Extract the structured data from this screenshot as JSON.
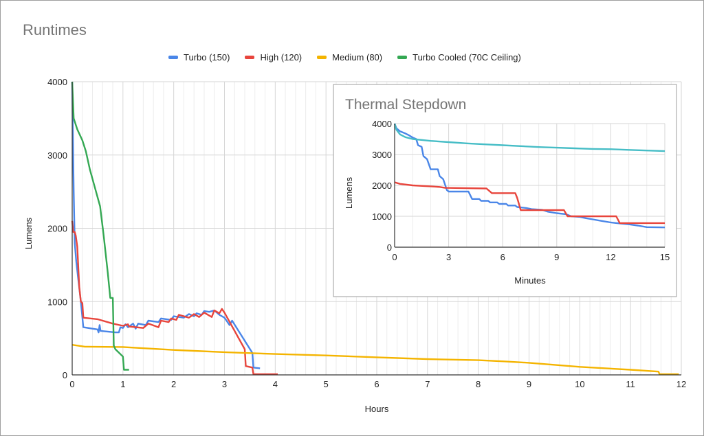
{
  "chart_data": [
    {
      "type": "line",
      "title": "Runtimes",
      "xlabel": "Hours",
      "ylabel": "Lumens",
      "xlim": [
        0,
        12
      ],
      "ylim": [
        0,
        4000
      ],
      "xticks": [
        "0",
        "1",
        "2",
        "3",
        "4",
        "5",
        "6",
        "7",
        "8",
        "9",
        "10",
        "11",
        "12"
      ],
      "yticks": [
        "0",
        "1000",
        "2000",
        "3000",
        "4000"
      ],
      "grid": true,
      "legend_position": "top",
      "series": [
        {
          "name": "Turbo (150)",
          "color": "#4a86e8",
          "points": [
            [
              0,
              4000
            ],
            [
              0.01,
              3500
            ],
            [
              0.03,
              2500
            ],
            [
              0.05,
              1800
            ],
            [
              0.08,
              1550
            ],
            [
              0.12,
              1300
            ],
            [
              0.17,
              1000
            ],
            [
              0.22,
              650
            ],
            [
              0.5,
              620
            ],
            [
              0.52,
              580
            ],
            [
              0.54,
              680
            ],
            [
              0.56,
              600
            ],
            [
              0.85,
              580
            ],
            [
              0.92,
              580
            ],
            [
              0.95,
              650
            ],
            [
              1.0,
              640
            ],
            [
              1.05,
              690
            ],
            [
              1.1,
              650
            ],
            [
              1.2,
              700
            ],
            [
              1.25,
              630
            ],
            [
              1.3,
              700
            ],
            [
              1.45,
              680
            ],
            [
              1.5,
              740
            ],
            [
              1.7,
              720
            ],
            [
              1.75,
              770
            ],
            [
              1.95,
              750
            ],
            [
              2.0,
              800
            ],
            [
              2.2,
              780
            ],
            [
              2.3,
              830
            ],
            [
              2.4,
              800
            ],
            [
              2.45,
              840
            ],
            [
              2.55,
              820
            ],
            [
              2.6,
              870
            ],
            [
              2.7,
              860
            ],
            [
              2.8,
              880
            ],
            [
              2.9,
              820
            ],
            [
              3.0,
              780
            ],
            [
              3.1,
              680
            ],
            [
              3.15,
              740
            ],
            [
              3.55,
              300
            ],
            [
              3.57,
              100
            ],
            [
              3.7,
              90
            ]
          ]
        },
        {
          "name": "High (120)",
          "color": "#e8453c",
          "points": [
            [
              0,
              2100
            ],
            [
              0.02,
              1950
            ],
            [
              0.05,
              1950
            ],
            [
              0.07,
              1900
            ],
            [
              0.1,
              1750
            ],
            [
              0.14,
              1200
            ],
            [
              0.17,
              1000
            ],
            [
              0.2,
              980
            ],
            [
              0.22,
              780
            ],
            [
              0.5,
              760
            ],
            [
              0.8,
              700
            ],
            [
              1.0,
              670
            ],
            [
              1.1,
              690
            ],
            [
              1.12,
              660
            ],
            [
              1.4,
              640
            ],
            [
              1.5,
              700
            ],
            [
              1.7,
              650
            ],
            [
              1.75,
              740
            ],
            [
              1.9,
              720
            ],
            [
              1.95,
              770
            ],
            [
              2.05,
              750
            ],
            [
              2.1,
              820
            ],
            [
              2.3,
              780
            ],
            [
              2.4,
              830
            ],
            [
              2.5,
              790
            ],
            [
              2.6,
              850
            ],
            [
              2.75,
              790
            ],
            [
              2.8,
              880
            ],
            [
              2.9,
              840
            ],
            [
              2.95,
              900
            ],
            [
              3.0,
              850
            ],
            [
              3.4,
              350
            ],
            [
              3.42,
              120
            ],
            [
              3.55,
              100
            ],
            [
              3.57,
              10
            ],
            [
              4.05,
              10
            ]
          ]
        },
        {
          "name": "Medium (80)",
          "color": "#f4b400",
          "points": [
            [
              0,
              410
            ],
            [
              0.25,
              385
            ],
            [
              1.0,
              380
            ],
            [
              2.0,
              340
            ],
            [
              3.0,
              310
            ],
            [
              4.0,
              285
            ],
            [
              5.0,
              265
            ],
            [
              6.0,
              240
            ],
            [
              7.0,
              215
            ],
            [
              8.0,
              200
            ],
            [
              8.5,
              185
            ],
            [
              9.0,
              165
            ],
            [
              10.0,
              110
            ],
            [
              11.0,
              70
            ],
            [
              11.55,
              45
            ],
            [
              11.57,
              10
            ],
            [
              11.95,
              10
            ]
          ]
        },
        {
          "name": "Turbo Cooled (70C Ceiling)",
          "color": "#34a853",
          "points": [
            [
              0,
              4000
            ],
            [
              0.03,
              3500
            ],
            [
              0.1,
              3350
            ],
            [
              0.2,
              3200
            ],
            [
              0.27,
              3050
            ],
            [
              0.35,
              2800
            ],
            [
              0.45,
              2550
            ],
            [
              0.55,
              2300
            ],
            [
              0.62,
              1900
            ],
            [
              0.7,
              1400
            ],
            [
              0.75,
              1050
            ],
            [
              0.8,
              1050
            ],
            [
              0.82,
              400
            ],
            [
              0.85,
              350
            ],
            [
              1.0,
              250
            ],
            [
              1.02,
              70
            ],
            [
              1.12,
              70
            ]
          ]
        }
      ]
    },
    {
      "type": "line",
      "title": "Thermal Stepdown",
      "xlabel": "Minutes",
      "ylabel": "Lumens",
      "xlim": [
        0,
        15
      ],
      "ylim": [
        0,
        4000
      ],
      "xticks": [
        "0",
        "3",
        "6",
        "9",
        "12",
        "15"
      ],
      "yticks": [
        "0",
        "1000",
        "2000",
        "3000",
        "4000"
      ],
      "grid": true,
      "legend_position": "none",
      "series": [
        {
          "name": "Turbo (150)",
          "color": "#4a86e8",
          "points": [
            [
              0,
              4000
            ],
            [
              0.1,
              3850
            ],
            [
              0.3,
              3750
            ],
            [
              0.6,
              3680
            ],
            [
              0.8,
              3620
            ],
            [
              1.0,
              3550
            ],
            [
              1.2,
              3500
            ],
            [
              1.3,
              3300
            ],
            [
              1.5,
              3250
            ],
            [
              1.6,
              2950
            ],
            [
              1.8,
              2850
            ],
            [
              2.0,
              2520
            ],
            [
              2.4,
              2520
            ],
            [
              2.5,
              2300
            ],
            [
              2.7,
              2200
            ],
            [
              2.9,
              1850
            ],
            [
              3.0,
              1800
            ],
            [
              4.1,
              1800
            ],
            [
              4.3,
              1560
            ],
            [
              4.7,
              1560
            ],
            [
              4.8,
              1500
            ],
            [
              5.2,
              1500
            ],
            [
              5.3,
              1450
            ],
            [
              5.7,
              1450
            ],
            [
              5.8,
              1400
            ],
            [
              6.2,
              1400
            ],
            [
              6.3,
              1350
            ],
            [
              6.7,
              1350
            ],
            [
              6.8,
              1300
            ],
            [
              7.3,
              1270
            ],
            [
              7.6,
              1230
            ],
            [
              8.2,
              1210
            ],
            [
              8.5,
              1150
            ],
            [
              9.0,
              1100
            ],
            [
              9.5,
              1070
            ],
            [
              9.8,
              1000
            ],
            [
              10.3,
              980
            ],
            [
              10.6,
              940
            ],
            [
              11.0,
              900
            ],
            [
              11.5,
              850
            ],
            [
              12.0,
              800
            ],
            [
              12.5,
              770
            ],
            [
              13.0,
              740
            ],
            [
              13.5,
              700
            ],
            [
              14.0,
              650
            ],
            [
              15.0,
              640
            ]
          ]
        },
        {
          "name": "High (120)",
          "color": "#e8453c",
          "points": [
            [
              0,
              2100
            ],
            [
              0.3,
              2050
            ],
            [
              1.0,
              2000
            ],
            [
              2.0,
              1970
            ],
            [
              2.5,
              1950
            ],
            [
              2.8,
              1920
            ],
            [
              5.1,
              1900
            ],
            [
              5.4,
              1750
            ],
            [
              6.7,
              1750
            ],
            [
              6.8,
              1600
            ],
            [
              7.0,
              1200
            ],
            [
              9.4,
              1200
            ],
            [
              9.6,
              1000
            ],
            [
              12.3,
              1000
            ],
            [
              12.5,
              780
            ],
            [
              15.0,
              780
            ]
          ]
        },
        {
          "name": "Turbo Cooled (70C Ceiling)",
          "color": "#46bdc6",
          "points": [
            [
              0,
              4000
            ],
            [
              0.1,
              3800
            ],
            [
              0.3,
              3650
            ],
            [
              0.6,
              3560
            ],
            [
              1.0,
              3500
            ],
            [
              2.0,
              3440
            ],
            [
              3.0,
              3400
            ],
            [
              4.0,
              3360
            ],
            [
              5.0,
              3330
            ],
            [
              6.0,
              3300
            ],
            [
              7.0,
              3270
            ],
            [
              8.0,
              3240
            ],
            [
              9.0,
              3220
            ],
            [
              10.0,
              3200
            ],
            [
              11.0,
              3180
            ],
            [
              12.0,
              3170
            ],
            [
              13.0,
              3150
            ],
            [
              14.0,
              3130
            ],
            [
              15.0,
              3110
            ]
          ]
        }
      ]
    }
  ]
}
